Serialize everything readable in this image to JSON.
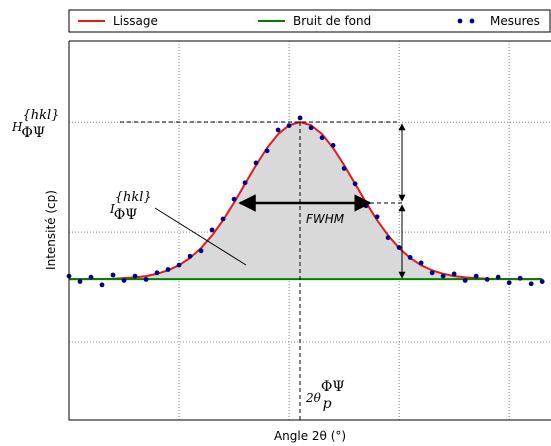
{
  "chart_data": {
    "type": "line",
    "x_label": "Angle 2θ (°)",
    "y_label": "Intensité (cp)",
    "x": [
      0,
      0.1,
      0.2,
      0.3,
      0.4,
      0.5,
      0.6,
      0.7,
      0.8,
      0.9,
      1.0,
      1.1,
      1.2,
      1.3,
      1.4,
      1.5,
      1.6,
      1.7,
      1.8,
      1.9,
      2.0,
      2.1,
      2.2,
      2.3,
      2.4,
      2.5,
      2.6,
      2.7,
      2.8,
      2.9,
      3.0,
      3.1,
      3.2,
      3.3,
      3.4,
      3.5,
      3.6,
      3.7,
      3.8,
      3.9,
      4.0,
      4.1,
      4.2,
      4.3
    ],
    "series": [
      {
        "name": "Lissage",
        "color": "#e41a1c",
        "kind": "line",
        "values": [
          1.572,
          1.572,
          1.573,
          1.574,
          1.576,
          1.581,
          1.588,
          1.6,
          1.621,
          1.652,
          1.699,
          1.765,
          1.855,
          1.97,
          2.109,
          2.268,
          2.44,
          2.61,
          2.766,
          2.892,
          2.973,
          3.002,
          2.973,
          2.892,
          2.766,
          2.61,
          2.44,
          2.268,
          2.109,
          1.97,
          1.855,
          1.765,
          1.699,
          1.652,
          1.621,
          1.6,
          1.588,
          1.581,
          1.576,
          1.574,
          1.573,
          1.572,
          1.572,
          1.572
        ]
      },
      {
        "name": "Bruit de fond",
        "color": "#008000",
        "kind": "line",
        "values": [
          1.572,
          1.572,
          1.572,
          1.572,
          1.572,
          1.572,
          1.572,
          1.572,
          1.572,
          1.572,
          1.572,
          1.572,
          1.572,
          1.572,
          1.572,
          1.572,
          1.572,
          1.572,
          1.572,
          1.572,
          1.572,
          1.572,
          1.572,
          1.572,
          1.572,
          1.572,
          1.572,
          1.572,
          1.572,
          1.572,
          1.572,
          1.572,
          1.572,
          1.572,
          1.572,
          1.572,
          1.572,
          1.572,
          1.572,
          1.572,
          1.572,
          1.572,
          1.572,
          1.572
        ]
      },
      {
        "name": "Mesures",
        "color": "#00008b",
        "kind": "scatter",
        "values": [
          1.6,
          1.55,
          1.59,
          1.52,
          1.61,
          1.56,
          1.6,
          1.57,
          1.63,
          1.66,
          1.7,
          1.78,
          1.83,
          2.02,
          2.12,
          2.3,
          2.45,
          2.63,
          2.74,
          2.93,
          2.97,
          3.04,
          2.95,
          2.86,
          2.79,
          2.58,
          2.44,
          2.24,
          2.14,
          1.95,
          1.86,
          1.77,
          1.72,
          1.63,
          1.6,
          1.62,
          1.56,
          1.6,
          1.57,
          1.59,
          1.54,
          1.58,
          1.53,
          1.55
        ]
      }
    ],
    "xlim": [
      0,
      4.38
    ],
    "ylim": [
      0.29,
      3.74
    ],
    "xticks": [
      1,
      2,
      3,
      4
    ],
    "yticks": [
      1,
      2,
      3
    ],
    "grid": true,
    "legend": "top",
    "annotations": {
      "height": {
        "symbol": "H",
        "superscript": "{hkl}",
        "subscript": "ΦΨ"
      },
      "integral": {
        "symbol": "I",
        "superscript": "{hkl}",
        "subscript": "ΦΨ"
      },
      "fwhm": "FWHM",
      "peak_position": {
        "symbol": "2θ",
        "superscript": "ΦΨ",
        "subscript": "p"
      }
    }
  }
}
